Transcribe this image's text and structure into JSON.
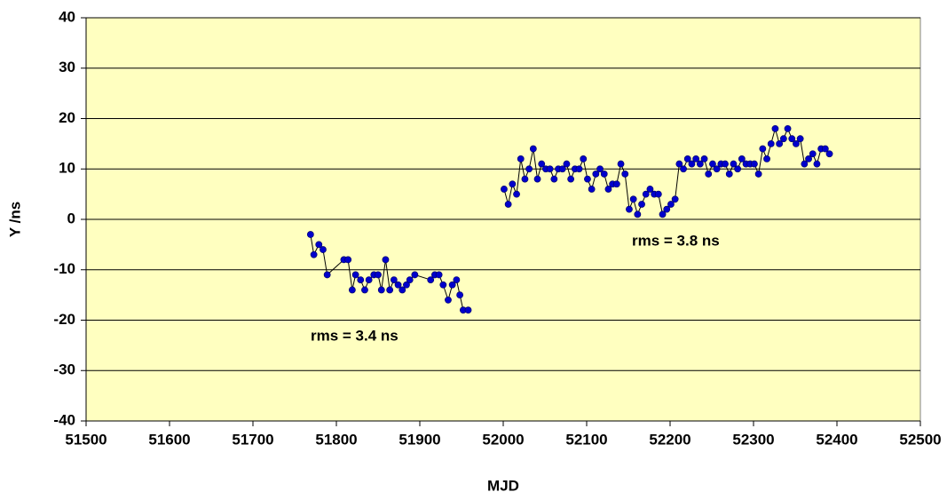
{
  "chart_data": {
    "type": "line",
    "x_label": "MJD",
    "y_label": "Y /ns",
    "annotations": [
      "rms = 3.4 ns",
      "rms = 3.8 ns"
    ],
    "xlim": [
      51500,
      52500
    ],
    "xticks": [
      51500,
      51600,
      51700,
      51800,
      51900,
      52000,
      52100,
      52200,
      52300,
      52400,
      52500
    ],
    "ylim": [
      -40,
      40
    ],
    "yticks": [
      -40,
      -30,
      -20,
      -10,
      0,
      10,
      20,
      30,
      40
    ],
    "grid": true,
    "background": "#ffffc0",
    "series": [
      {
        "color": "#0000cc",
        "x": [
          51769,
          51773,
          51779,
          51784,
          51789,
          51809,
          51814,
          51819,
          51823,
          51829,
          51834,
          51839,
          51845,
          51850,
          51854,
          51859,
          51864,
          51869,
          51874,
          51879,
          51884,
          51888,
          51894,
          51913,
          51918,
          51923,
          51928,
          51934,
          51939,
          51944,
          51948,
          51952,
          51958
        ],
        "values": [
          -3,
          -7,
          -5,
          -6,
          -11,
          -8,
          -8,
          -14,
          -11,
          -12,
          -14,
          -12,
          -11,
          -11,
          -14,
          -8,
          -14,
          -12,
          -13,
          -14,
          -13,
          -12,
          -11,
          -12,
          -11,
          -11,
          -13,
          -16,
          -13,
          -12,
          -15,
          -18,
          -18
        ]
      },
      {
        "color": "#0000cc",
        "x": [
          52001,
          52006,
          52011,
          52016,
          52021,
          52026,
          52031,
          52036,
          52041,
          52046,
          52051,
          52056,
          52061,
          52066,
          52071,
          52076,
          52081,
          52086,
          52091,
          52096,
          52101,
          52106,
          52111,
          52116,
          52121,
          52126,
          52131,
          52136,
          52141,
          52146,
          52151,
          52156,
          52161,
          52166,
          52171,
          52176,
          52181,
          52186,
          52191,
          52196,
          52201,
          52206,
          52211,
          52216,
          52221,
          52226,
          52231,
          52236,
          52241,
          52246,
          52251,
          52256,
          52261,
          52266,
          52271,
          52276,
          52281,
          52286,
          52291,
          52296,
          52301,
          52306,
          52311,
          52316,
          52321,
          52326,
          52331,
          52336,
          52341,
          52346,
          52351,
          52356,
          52361,
          52366,
          52371,
          52376,
          52381,
          52386,
          52391
        ],
        "values": [
          6,
          3,
          7,
          5,
          12,
          8,
          10,
          14,
          8,
          11,
          10,
          10,
          8,
          10,
          10,
          11,
          8,
          10,
          10,
          12,
          8,
          6,
          9,
          10,
          9,
          6,
          7,
          7,
          11,
          9,
          2,
          4,
          1,
          3,
          5,
          6,
          5,
          5,
          1,
          2,
          3,
          4,
          11,
          10,
          12,
          11,
          12,
          11,
          12,
          9,
          11,
          10,
          11,
          11,
          9,
          11,
          10,
          12,
          11,
          11,
          11,
          9,
          14,
          12,
          15,
          18,
          15,
          16,
          18,
          16,
          15,
          16,
          11,
          12,
          13,
          11,
          14,
          14,
          13
        ]
      }
    ]
  }
}
